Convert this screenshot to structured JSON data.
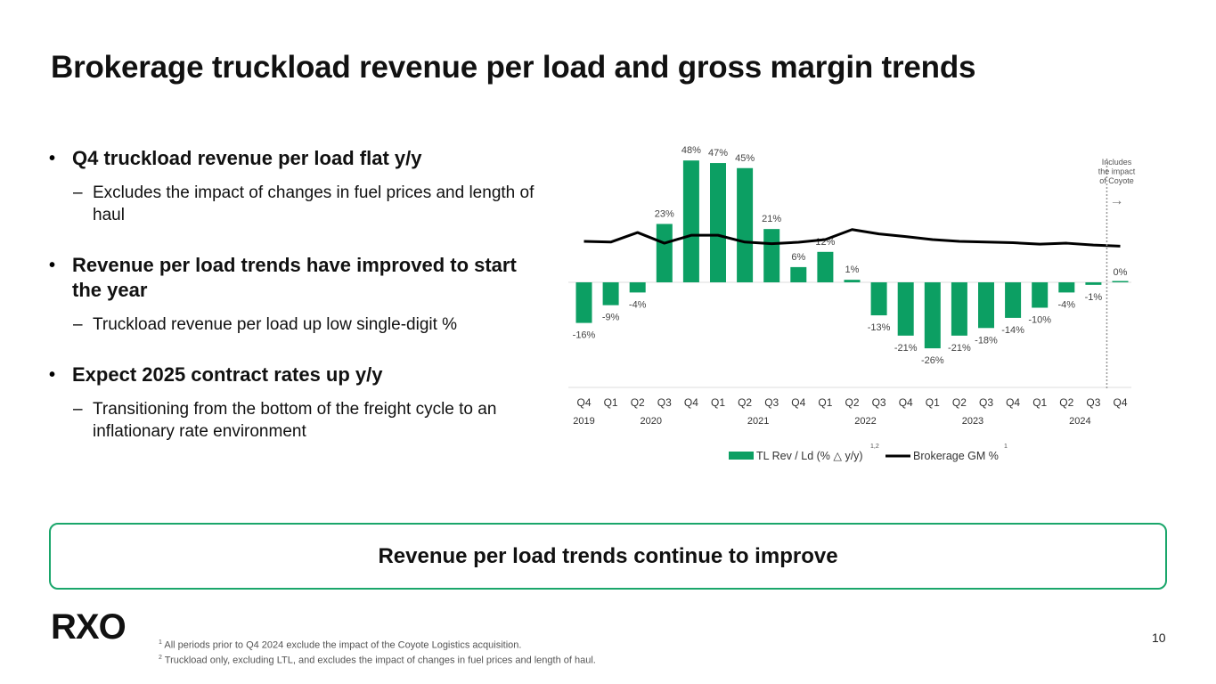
{
  "title": "Brokerage truckload revenue per load and gross margin trends",
  "bullets": [
    {
      "text": "Q4 truckload revenue per load flat y/y",
      "sub": "Excludes the impact of changes in fuel prices and length of haul"
    },
    {
      "text": "Revenue per load trends have improved to start the year",
      "sub": "Truckload revenue per load up low single-digit %"
    },
    {
      "text": "Expect 2025 contract rates up y/y",
      "sub": "Transitioning from the bottom of the freight cycle to an inflationary rate environment"
    }
  ],
  "bullet_marker": "•",
  "sub_marker": "–",
  "callout": "Revenue per load trends continue to improve",
  "logo_text": "RXO",
  "footnotes": [
    {
      "num": "1",
      "text": "All periods prior to Q4 2024 exclude the impact of the Coyote Logistics acquisition."
    },
    {
      "num": "2",
      "text": "Truckload only, excluding LTL, and excludes the impact of changes in fuel prices and length of haul."
    }
  ],
  "page_number": "10",
  "colors": {
    "bar": "#0c9f63",
    "line": "#000000",
    "accent": "#1aa66b",
    "text": "#111111",
    "grid": "#dddddd"
  },
  "chart_data": {
    "type": "bar+line",
    "categories": [
      "Q4",
      "Q1",
      "Q2",
      "Q3",
      "Q4",
      "Q1",
      "Q2",
      "Q3",
      "Q4",
      "Q1",
      "Q2",
      "Q3",
      "Q4",
      "Q1",
      "Q2",
      "Q3",
      "Q4",
      "Q1",
      "Q2",
      "Q3",
      "Q4"
    ],
    "years": [
      {
        "label": "2019",
        "first": 0,
        "last": 0
      },
      {
        "label": "2020",
        "first": 1,
        "last": 4
      },
      {
        "label": "2021",
        "first": 5,
        "last": 8
      },
      {
        "label": "2022",
        "first": 9,
        "last": 12
      },
      {
        "label": "2023",
        "first": 13,
        "last": 16
      },
      {
        "label": "2024",
        "first": 17,
        "last": 20
      }
    ],
    "series": [
      {
        "name": "TL Rev / Ld (% △ y/y)",
        "superscript": "1,2",
        "type": "bar",
        "values": [
          -16,
          -9,
          -4,
          23,
          48,
          47,
          45,
          21,
          6,
          12,
          1,
          -13,
          -21,
          -26,
          -21,
          -18,
          -14,
          -10,
          -4,
          -1,
          0
        ],
        "labels": [
          "-16%",
          "-9%",
          "-4%",
          "23%",
          "48%",
          "47%",
          "45%",
          "21%",
          "6%",
          "12%",
          "1%",
          "-13%",
          "-21%",
          "-26%",
          "-21%",
          "-18%",
          "-14%",
          "-10%",
          "-4%",
          "-1%",
          "0%"
        ]
      },
      {
        "name": "Brokerage GM %",
        "superscript": "1",
        "type": "line",
        "axis": "unlabeled secondary",
        "values": [
          15.6,
          15.3,
          19.5,
          14.8,
          18.3,
          18.3,
          15.3,
          14.6,
          15.2,
          16.4,
          20.8,
          18.9,
          17.7,
          16.4,
          15.6,
          15.3,
          15.0,
          14.4,
          14.8,
          14.0,
          13.5
        ]
      }
    ],
    "ylim": [
      -40,
      50
    ],
    "annotation": {
      "text": [
        "Includes",
        "the impact",
        "of Coyote"
      ],
      "at_category": 20,
      "arrow": "→"
    },
    "legend_position": "bottom-center"
  }
}
